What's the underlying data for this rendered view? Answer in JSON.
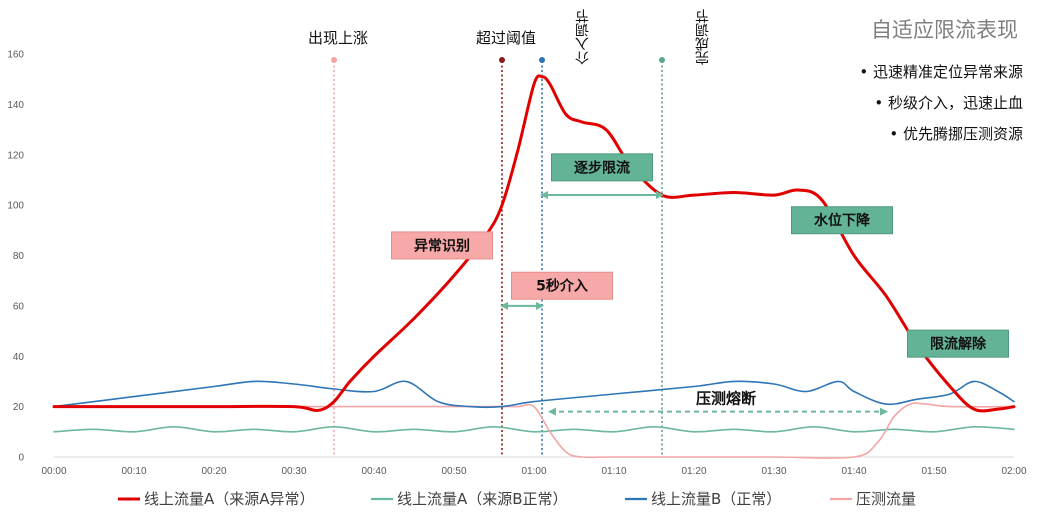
{
  "chart_data": {
    "type": "line",
    "title": "自适应限流表现",
    "xlabel": "",
    "ylabel": "",
    "ylim": [
      0,
      160
    ],
    "y_ticks": [
      0,
      20,
      40,
      60,
      80,
      100,
      120,
      140,
      160
    ],
    "x_ticks": [
      "00:00",
      "00:10",
      "00:20",
      "00:30",
      "00:40",
      "00:50",
      "01:00",
      "01:10",
      "01:20",
      "01:30",
      "01:40",
      "01:50",
      "02:00"
    ],
    "grid": false,
    "legend_position": "bottom",
    "bullets": [
      "迅速精准定位异常来源",
      "秒级介入，迅速止血",
      "优先腾挪压测资源"
    ],
    "markers": [
      {
        "label": "出现上涨",
        "x": 35,
        "color": "#f4a6a6",
        "label_style": "horizontal"
      },
      {
        "label": "超过阈值",
        "x": 56,
        "color": "#8b1a1a",
        "label_style": "horizontal"
      },
      {
        "label": "介入调节",
        "x": 61,
        "color": "#2e75b6",
        "label_style": "vertical"
      },
      {
        "label": "完成调节",
        "x": 76,
        "color": "#5ba88a",
        "label_style": "vertical"
      }
    ],
    "annotations": [
      {
        "text": "异常识别",
        "style": "pink",
        "anchor_x": 48.5,
        "anchor_y": 84
      },
      {
        "text": "5秒介入",
        "style": "pink",
        "anchor_x": 63.5,
        "anchor_y": 68
      },
      {
        "text": "逐步限流",
        "style": "green",
        "anchor_x": 68.5,
        "anchor_y": 115
      },
      {
        "text": "水位下降",
        "style": "green",
        "anchor_x": 98.5,
        "anchor_y": 94
      },
      {
        "text": "限流解除",
        "style": "green",
        "anchor_x": 113,
        "anchor_y": 45
      }
    ],
    "arrows": [
      {
        "x_from": 56,
        "x_to": 61,
        "y": 60,
        "dashed": false,
        "color": "#6cb89a"
      },
      {
        "x_from": 61,
        "x_to": 76,
        "y": 104,
        "dashed": false,
        "color": "#6cb89a"
      },
      {
        "x_from": 62,
        "x_to": 104,
        "y": 18,
        "dashed": true,
        "color": "#6cb89a",
        "label": "压测熔断"
      }
    ],
    "series": [
      {
        "name": "线上流量A（来源A异常）",
        "color": "#e00000",
        "width": 3,
        "x": [
          0,
          10,
          20,
          30,
          33,
          35,
          37,
          40,
          45,
          50,
          54,
          56,
          58,
          60,
          61,
          62,
          64,
          66,
          69,
          72,
          76,
          80,
          85,
          90,
          93,
          96,
          100,
          104,
          108,
          112,
          115,
          118,
          120
        ],
        "y": [
          20,
          20,
          20,
          20,
          18.5,
          22,
          30,
          40,
          55,
          72,
          88,
          100,
          122,
          148,
          151,
          148,
          136,
          133,
          130,
          116,
          104,
          104,
          105,
          104,
          106,
          102,
          80,
          64,
          44,
          28,
          19,
          19,
          20
        ]
      },
      {
        "name": "线上流量A（来源B正常）",
        "color": "#6cb89a",
        "width": 1.6,
        "x": [
          0,
          5,
          10,
          15,
          20,
          25,
          30,
          35,
          40,
          45,
          50,
          55,
          60,
          65,
          70,
          75,
          80,
          85,
          90,
          95,
          100,
          105,
          110,
          115,
          120
        ],
        "y": [
          10,
          11,
          10,
          12,
          10,
          11,
          10,
          12,
          10,
          11,
          10,
          12,
          10,
          11,
          10,
          12,
          10,
          11,
          10,
          12,
          10,
          11,
          10,
          12,
          11
        ]
      },
      {
        "name": "线上流量B（正常）",
        "color": "#2e75b6",
        "width": 1.6,
        "x": [
          0,
          10,
          20,
          25,
          30,
          35,
          40,
          44,
          48,
          52,
          56,
          60,
          70,
          80,
          85,
          90,
          94,
          98,
          100,
          104,
          108,
          112,
          115,
          118,
          120
        ],
        "y": [
          20,
          24,
          28,
          30,
          29,
          27,
          26,
          30,
          22,
          20,
          20,
          22,
          25,
          28,
          30,
          29,
          26,
          30,
          26,
          21,
          23,
          25,
          30,
          26,
          22
        ]
      },
      {
        "name": "压测流量",
        "color": "#f4a6a6",
        "width": 1.6,
        "x": [
          0,
          10,
          20,
          30,
          35,
          40,
          50,
          56,
          58,
          60,
          62,
          64,
          66,
          70,
          80,
          90,
          100,
          103,
          105,
          107,
          109,
          112,
          120
        ],
        "y": [
          20,
          20,
          20,
          20,
          20,
          20,
          20,
          20,
          20,
          20,
          10,
          2,
          0,
          0,
          0,
          0,
          0,
          6,
          16,
          21,
          21,
          20,
          20
        ]
      }
    ]
  }
}
